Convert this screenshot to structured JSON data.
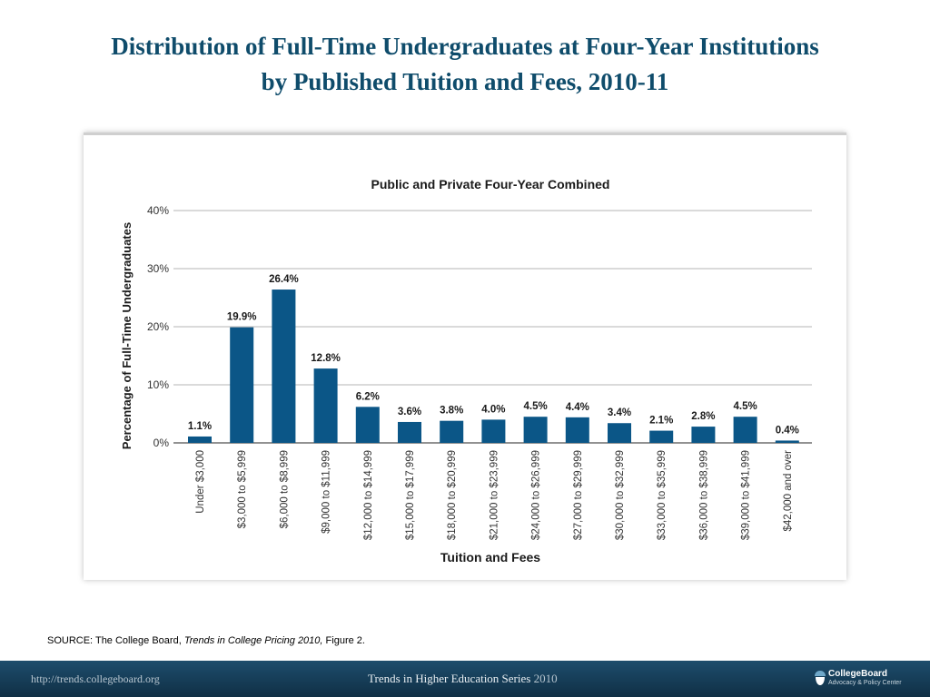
{
  "slide": {
    "title_line1": "Distribution of Full-Time Undergraduates at Four-Year Institutions",
    "title_line2": "by Published Tuition and Fees, 2010-11"
  },
  "source": {
    "prefix": "SOURCE: The College Board, ",
    "publication": "Trends in College Pricing 2010,",
    "suffix": " Figure 2."
  },
  "footer": {
    "url": "http://trends.collegeboard.org",
    "series": "Trends in Higher Education Series ",
    "series_year": "2010",
    "logo_name": "CollegeBoard",
    "logo_sub": "Advocacy & Policy Center"
  },
  "colors": {
    "bar": "#0b5687",
    "title": "#0f4c6b",
    "footer": "#143b54"
  },
  "chart_data": {
    "type": "bar",
    "title": "Public and Private Four-Year Combined",
    "xlabel": "Tuition and Fees",
    "ylabel": "Percentage of Full-Time Undergraduates",
    "ylim": [
      0,
      40
    ],
    "yticks": [
      "0%",
      "10%",
      "20%",
      "30%",
      "40%"
    ],
    "grid": true,
    "categories": [
      "Under $3,000",
      "$3,000 to $5,999",
      "$6,000 to $8,999",
      "$9,000 to $11,999",
      "$12,000 to $14,999",
      "$15,000 to $17,999",
      "$18,000 to $20,999",
      "$21,000 to $23,999",
      "$24,000 to $26,999",
      "$27,000 to $29,999",
      "$30,000 to $32,999",
      "$33,000 to $35,999",
      "$36,000 to $38,999",
      "$39,000 to $41,999",
      "$42,000 and over"
    ],
    "values": [
      1.1,
      19.9,
      26.4,
      12.8,
      6.2,
      3.6,
      3.8,
      4.0,
      4.5,
      4.4,
      3.4,
      2.1,
      2.8,
      4.5,
      0.4
    ],
    "data_labels": [
      "1.1%",
      "19.9%",
      "26.4%",
      "12.8%",
      "6.2%",
      "3.6%",
      "3.8%",
      "4.0%",
      "4.5%",
      "4.4%",
      "3.4%",
      "2.1%",
      "2.8%",
      "4.5%",
      "0.4%"
    ]
  }
}
